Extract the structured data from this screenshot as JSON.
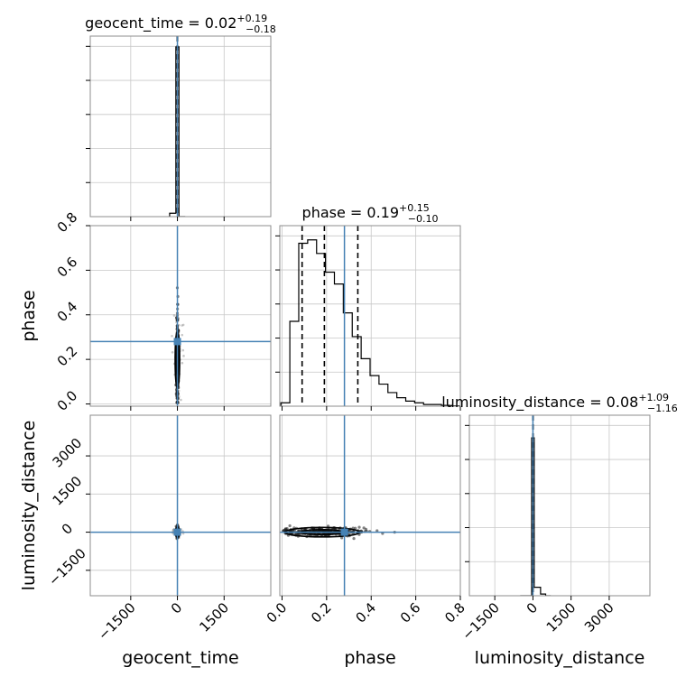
{
  "colors": {
    "truth": "#4682b4",
    "hist": "#000000",
    "grid": "#c8c8c8",
    "frame": "#8c8c8c",
    "scatter": "#9a9a9a"
  },
  "chart_data": {
    "type": "corner",
    "parameters": [
      "geocent_time",
      "phase",
      "luminosity_distance"
    ],
    "truths": {
      "geocent_time": 0,
      "phase": 0.28,
      "luminosity_distance": 0
    },
    "titles": [
      {
        "param": "geocent_time",
        "text": "geocent_time = 0.02",
        "upper": "+0.19",
        "lower": "−0.18"
      },
      {
        "param": "phase",
        "text": "phase = 0.19",
        "upper": "+0.15",
        "lower": "−0.10"
      },
      {
        "param": "luminosity_distance",
        "text": "luminosity_distance = 0.08",
        "upper": "+1.09",
        "lower": "−1.16"
      }
    ],
    "ranges": {
      "geocent_time": [
        -2800,
        3000
      ],
      "phase": [
        -0.01,
        0.8
      ],
      "luminosity_distance": [
        -2500,
        4600
      ]
    },
    "ticks": {
      "geocent_time": {
        "values": [
          -1500,
          0,
          1500
        ],
        "labels": [
          "−1500",
          "0",
          "1500"
        ]
      },
      "phase": {
        "values": [
          0.0,
          0.2,
          0.4,
          0.6,
          0.8
        ],
        "labels": [
          "0.0",
          "0.2",
          "0.4",
          "0.6",
          "0.8"
        ]
      },
      "luminosity_distance": {
        "values": [
          -1500,
          0,
          1500,
          3000
        ],
        "labels": [
          "−1500",
          "0",
          "1500",
          "3000"
        ]
      }
    },
    "histograms": {
      "geocent_time": {
        "edges": [
          -250,
          -50,
          0,
          50,
          100,
          150,
          250
        ],
        "counts": [
          0.02,
          1.0,
          1.0,
          0.0,
          0.0,
          0.0
        ],
        "quantiles": [
          -0.16,
          0.02,
          0.21
        ]
      },
      "phase": {
        "edges": [
          -0.005,
          0.035,
          0.075,
          0.115,
          0.155,
          0.195,
          0.235,
          0.275,
          0.315,
          0.355,
          0.395,
          0.435,
          0.475,
          0.515,
          0.555,
          0.595,
          0.635,
          0.675,
          0.715,
          0.755,
          0.795
        ],
        "counts": [
          0.02,
          0.5,
          0.96,
          0.98,
          0.9,
          0.79,
          0.72,
          0.55,
          0.41,
          0.28,
          0.18,
          0.13,
          0.08,
          0.05,
          0.03,
          0.02,
          0.01,
          0.01,
          0.005,
          0.002
        ],
        "quantiles": [
          0.09,
          0.19,
          0.34
        ]
      },
      "luminosity_distance": {
        "edges": [
          -500,
          -50,
          50,
          300,
          500,
          700
        ],
        "counts": [
          0.0,
          0.93,
          0.05,
          0.01,
          0.0
        ],
        "quantiles": [
          -1.08,
          0.08,
          1.17
        ]
      }
    },
    "grid": true,
    "density_points": 240,
    "scatter_points": 40
  }
}
